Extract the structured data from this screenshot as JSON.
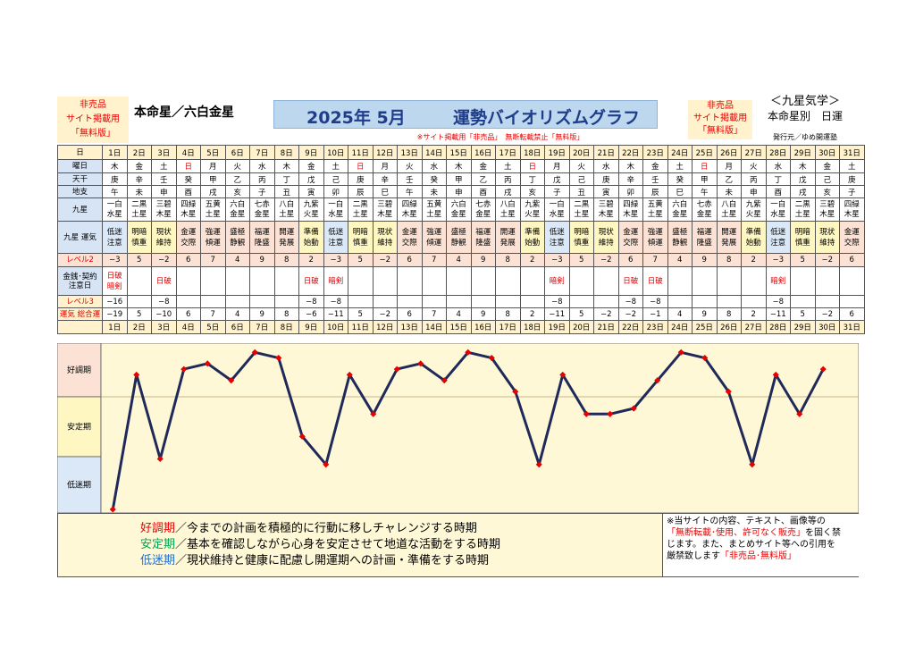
{
  "header": {
    "left_tag": [
      "非売品",
      "サイト掲載用",
      "「無料版」"
    ],
    "honmei": "本命星／六白金星",
    "title_year": "2025年 5月",
    "title_main": "運勢バイオリズムグラフ",
    "right_tag": [
      "非売品",
      "サイト掲載用",
      "「無料版」"
    ],
    "series": "＜九星気学＞",
    "series_sub": "本命星別　日運",
    "publisher": "発行元／ゆめ開運塾",
    "banner": "※サイト掲載用「非売品」　無断転載禁止「無料版」"
  },
  "row_labels": {
    "day": "日",
    "weekday": "曜日",
    "tenkan": "天干",
    "chishi": "地支",
    "kyusei": "九星",
    "unki": "九星 運気",
    "level2": "レベル2",
    "kinsen": "金銭･契約 注意日",
    "level3": "レベル3",
    "total": "運気 総合運",
    "day2": ""
  },
  "days": [
    "1日",
    "2日",
    "3日",
    "4日",
    "5日",
    "6日",
    "7日",
    "8日",
    "9日",
    "10日",
    "11日",
    "12日",
    "13日",
    "14日",
    "15日",
    "16日",
    "17日",
    "18日",
    "19日",
    "20日",
    "21日",
    "22日",
    "23日",
    "24日",
    "25日",
    "26日",
    "27日",
    "28日",
    "29日",
    "30日",
    "31日"
  ],
  "weekdays": [
    "木",
    "金",
    "土",
    "日",
    "月",
    "火",
    "水",
    "木",
    "金",
    "土",
    "日",
    "月",
    "火",
    "水",
    "木",
    "金",
    "土",
    "日",
    "月",
    "火",
    "水",
    "木",
    "金",
    "土",
    "日",
    "月",
    "火",
    "水",
    "木",
    "金",
    "土"
  ],
  "red_days": [
    4,
    11,
    18,
    25
  ],
  "tenkan": [
    "庚",
    "辛",
    "壬",
    "癸",
    "甲",
    "乙",
    "丙",
    "丁",
    "戊",
    "己",
    "庚",
    "辛",
    "壬",
    "癸",
    "甲",
    "乙",
    "丙",
    "丁",
    "戊",
    "己",
    "庚",
    "辛",
    "壬",
    "癸",
    "甲",
    "乙",
    "丙",
    "丁",
    "戊",
    "己",
    "庚"
  ],
  "chishi": [
    "午",
    "未",
    "申",
    "酉",
    "戌",
    "亥",
    "子",
    "丑",
    "寅",
    "卯",
    "辰",
    "巳",
    "午",
    "未",
    "申",
    "酉",
    "戌",
    "亥",
    "子",
    "丑",
    "寅",
    "卯",
    "辰",
    "巳",
    "午",
    "未",
    "申",
    "酉",
    "戌",
    "亥",
    "子"
  ],
  "kyusei": [
    "一白 水星",
    "二黒 土星",
    "三碧 木星",
    "四緑 木星",
    "五黄 土星",
    "六白 金星",
    "七赤 金星",
    "八白 土星",
    "九紫 火星",
    "一白 水星",
    "二黒 土星",
    "三碧 木星",
    "四緑 木星",
    "五黄 土星",
    "六白 金星",
    "七赤 金星",
    "八白 土星",
    "九紫 火星",
    "一白 水星",
    "二黒 土星",
    "三碧 木星",
    "四緑 木星",
    "五黄 土星",
    "六白 金星",
    "七赤 金星",
    "八白 土星",
    "九紫 火星",
    "一白 水星",
    "二黒 土星",
    "三碧 木星",
    "四緑 木星"
  ],
  "unki": [
    "低迷 注意",
    "明暗 慎重",
    "現状 維持",
    "金運 交際",
    "強運 傾運",
    "盛極 静観",
    "福運 隆盛",
    "開運 発展",
    "準備 始動",
    "低迷 注意",
    "明暗 慎重",
    "現状 維持",
    "金運 交際",
    "強運 傾運",
    "盛極 静観",
    "福運 隆盛",
    "開運 発展",
    "準備 始動",
    "低迷 注意",
    "明暗 慎重",
    "現状 維持",
    "金運 交際",
    "強運 傾運",
    "盛極 静観",
    "福運 隆盛",
    "開運 発展",
    "準備 始動",
    "低迷 注意",
    "明暗 慎重",
    "現状 維持",
    "金運 交際"
  ],
  "unki_class": [
    "teimei",
    "antei",
    "antei",
    "kocho",
    "kocho",
    "kocho",
    "kocho",
    "kocho",
    "antei",
    "teimei",
    "antei",
    "antei",
    "kocho",
    "kocho",
    "kocho",
    "kocho",
    "kocho",
    "antei",
    "teimei",
    "antei",
    "antei",
    "kocho",
    "kocho",
    "kocho",
    "kocho",
    "kocho",
    "antei",
    "teimei",
    "antei",
    "antei",
    "kocho"
  ],
  "level2": [
    "−3",
    "5",
    "−2",
    "6",
    "7",
    "4",
    "9",
    "8",
    "2",
    "−3",
    "5",
    "−2",
    "6",
    "7",
    "4",
    "9",
    "8",
    "2",
    "−3",
    "5",
    "−2",
    "6",
    "7",
    "4",
    "9",
    "8",
    "2",
    "−3",
    "5",
    "−2",
    "6"
  ],
  "kinsen": [
    "日破 暗剣",
    "",
    "日破",
    "",
    "",
    "",
    "",
    "",
    "日破",
    "暗剣",
    "",
    "",
    "",
    "",
    "",
    "",
    "",
    "",
    "暗剣",
    "",
    "",
    "日破",
    "日破",
    "",
    "",
    "",
    "",
    "暗剣",
    "",
    "",
    ""
  ],
  "level3": [
    "−16",
    "",
    "−8",
    "",
    "",
    "",
    "",
    "",
    "−8",
    "−8",
    "",
    "",
    "",
    "",
    "",
    "",
    "",
    "",
    "−8",
    "",
    "",
    "−8",
    "−8",
    "",
    "",
    "",
    "",
    "−8",
    "",
    "",
    ""
  ],
  "totals": [
    "−19",
    "5",
    "−10",
    "6",
    "7",
    "4",
    "9",
    "8",
    "−6",
    "−11",
    "5",
    "−2",
    "6",
    "7",
    "4",
    "9",
    "8",
    "2",
    "−11",
    "5",
    "−2",
    "−2",
    "−1",
    "4",
    "9",
    "8",
    "2",
    "−11",
    "5",
    "−2",
    "6"
  ],
  "zone_labels": [
    "好調期",
    "安定期",
    "低迷期"
  ],
  "chart_data": {
    "type": "line",
    "x": [
      1,
      2,
      3,
      4,
      5,
      6,
      7,
      8,
      9,
      10,
      11,
      12,
      13,
      14,
      15,
      16,
      17,
      18,
      19,
      20,
      21,
      22,
      23,
      24,
      25,
      26,
      27,
      28,
      29,
      30,
      31
    ],
    "values": [
      -19,
      5,
      -10,
      6,
      7,
      4,
      9,
      8,
      -6,
      -11,
      5,
      -2,
      6,
      7,
      4,
      9,
      8,
      2,
      -11,
      5,
      -2,
      -2,
      -1,
      4,
      9,
      8,
      2,
      -11,
      5,
      -2,
      6
    ],
    "ylim": [
      -19,
      10
    ],
    "line_color": "#1f2a5a",
    "marker_color": "#e60000"
  },
  "legend": {
    "kocho_word": "好調期",
    "kocho_text": "／今までの計画を積極的に行動に移しチャレンジする時期",
    "antei_word": "安定期",
    "antei_text": "／基本を確認しながら心身を安定させて地道な活動をする時期",
    "teimei_word": "低迷期",
    "teimei_text": "／現状維持と健康に配慮し開運期への計画・準備をする時期",
    "kocho_color": "#e60000",
    "antei_color": "#00a651",
    "teimei_color": "#1f6fd0"
  },
  "note": {
    "line1": "※当サイトの内容、テキスト、画像等の",
    "line2_red": "「無断転載･使用、許可なく販売」",
    "line2_tail": "を固く禁",
    "line3": "じます。また、まとめサイト等への引用を",
    "line4": "厳禁致します",
    "line4_red": "「非売品･無料版」"
  }
}
